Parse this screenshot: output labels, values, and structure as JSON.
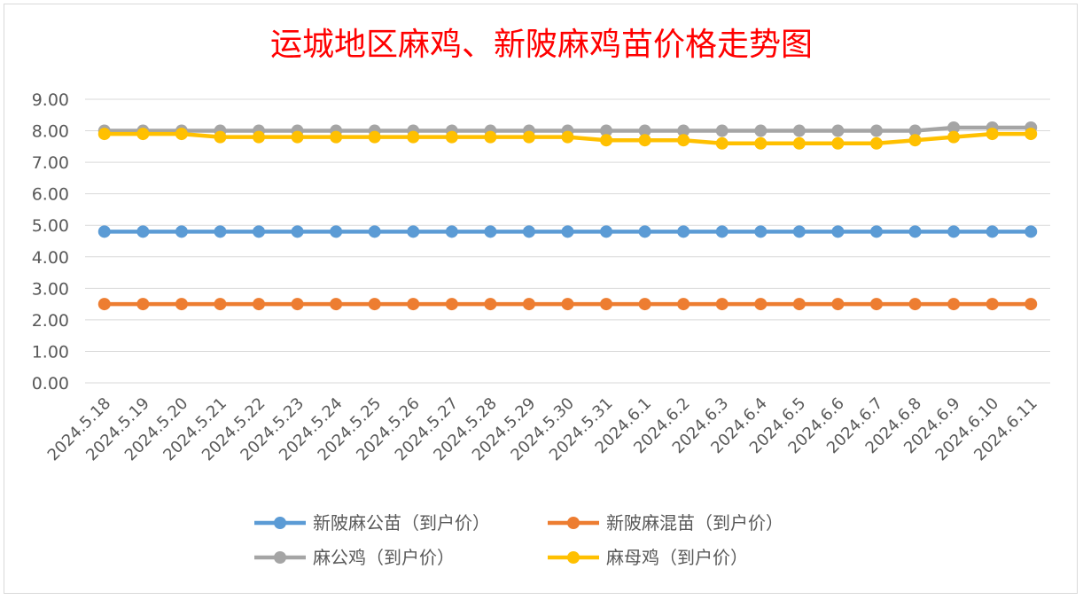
{
  "chart_data": {
    "type": "line",
    "title": "运城地区麻鸡、新陂麻鸡苗价格走势图",
    "xlabel": "",
    "ylabel": "",
    "ylim": [
      0,
      9
    ],
    "y_ticks": [
      "0.00",
      "1.00",
      "2.00",
      "3.00",
      "4.00",
      "5.00",
      "6.00",
      "7.00",
      "8.00",
      "9.00"
    ],
    "grid": true,
    "legend_position": "bottom",
    "categories": [
      "2024.5.18",
      "2024.5.19",
      "2024.5.20",
      "2024.5.21",
      "2024.5.22",
      "2024.5.23",
      "2024.5.24",
      "2024.5.25",
      "2024.5.26",
      "2024.5.27",
      "2024.5.28",
      "2024.5.29",
      "2024.5.30",
      "2024.5.31",
      "2024.6.1",
      "2024.6.2",
      "2024.6.3",
      "2024.6.4",
      "2024.6.5",
      "2024.6.6",
      "2024.6.7",
      "2024.6.8",
      "2024.6.9",
      "2024.6.10",
      "2024.6.11"
    ],
    "series": [
      {
        "name": "新陂麻公苗（到户价）",
        "color": "#5b9bd5",
        "values": [
          4.8,
          4.8,
          4.8,
          4.8,
          4.8,
          4.8,
          4.8,
          4.8,
          4.8,
          4.8,
          4.8,
          4.8,
          4.8,
          4.8,
          4.8,
          4.8,
          4.8,
          4.8,
          4.8,
          4.8,
          4.8,
          4.8,
          4.8,
          4.8,
          4.8
        ]
      },
      {
        "name": "新陂麻混苗（到户价）",
        "color": "#ed7d31",
        "values": [
          2.5,
          2.5,
          2.5,
          2.5,
          2.5,
          2.5,
          2.5,
          2.5,
          2.5,
          2.5,
          2.5,
          2.5,
          2.5,
          2.5,
          2.5,
          2.5,
          2.5,
          2.5,
          2.5,
          2.5,
          2.5,
          2.5,
          2.5,
          2.5,
          2.5
        ]
      },
      {
        "name": "麻公鸡（到户价）",
        "color": "#a5a5a5",
        "values": [
          8.0,
          8.0,
          8.0,
          8.0,
          8.0,
          8.0,
          8.0,
          8.0,
          8.0,
          8.0,
          8.0,
          8.0,
          8.0,
          8.0,
          8.0,
          8.0,
          8.0,
          8.0,
          8.0,
          8.0,
          8.0,
          8.0,
          8.1,
          8.1,
          8.1
        ]
      },
      {
        "name": "麻母鸡（到户价）",
        "color": "#ffc000",
        "values": [
          7.9,
          7.9,
          7.9,
          7.8,
          7.8,
          7.8,
          7.8,
          7.8,
          7.8,
          7.8,
          7.8,
          7.8,
          7.8,
          7.7,
          7.7,
          7.7,
          7.6,
          7.6,
          7.6,
          7.6,
          7.6,
          7.7,
          7.8,
          7.9,
          7.9
        ]
      }
    ]
  }
}
